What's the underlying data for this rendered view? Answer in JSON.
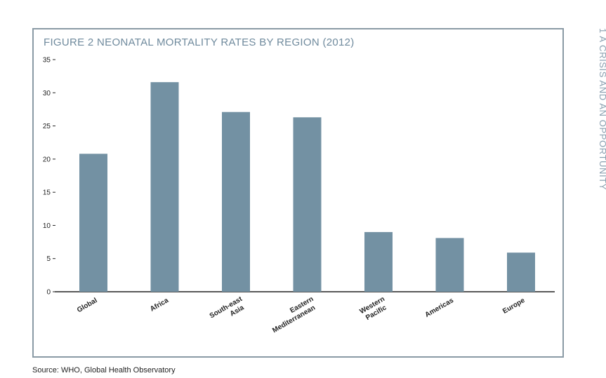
{
  "title": "FIGURE 2  NEONATAL MORTALITY RATES BY REGION (2012)",
  "source": "Source: WHO, Global Health Observatory",
  "side_label": "1  A CRISIS AND AN OPPORTUNITY",
  "colors": {
    "bar": "#7391a3",
    "frame": "#8a9aa5",
    "title": "#6f8a9d",
    "axis": "#222222"
  },
  "chart_data": {
    "type": "bar",
    "title": "FIGURE 2  NEONATAL MORTALITY RATES BY REGION (2012)",
    "categories": [
      [
        "Global"
      ],
      [
        "Africa"
      ],
      [
        "South-east",
        "Asia"
      ],
      [
        "Eastern",
        "Mediterranean"
      ],
      [
        "Western",
        "Pacific"
      ],
      [
        "Americas"
      ],
      [
        "Europe"
      ]
    ],
    "values": [
      20.8,
      31.6,
      27.1,
      26.3,
      9.0,
      8.1,
      5.9
    ],
    "yticks": [
      0,
      5,
      10,
      15,
      20,
      25,
      30,
      35
    ],
    "ylim": [
      0,
      35
    ],
    "xlabel": "",
    "ylabel": "",
    "grid": false
  }
}
